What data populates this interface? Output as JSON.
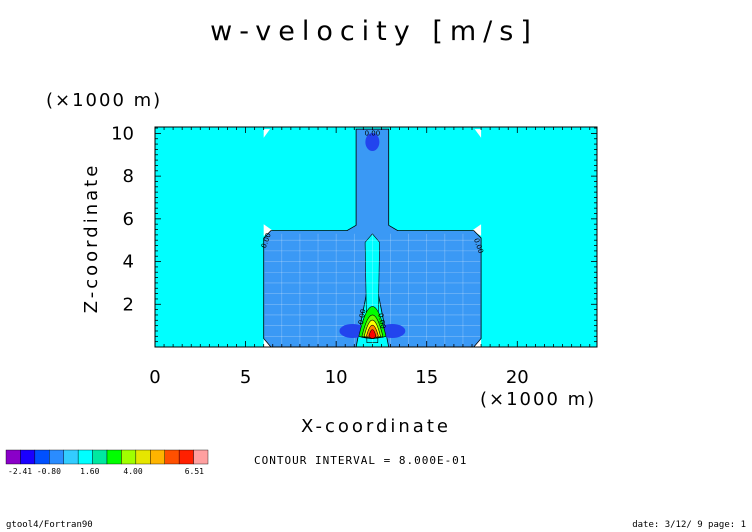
{
  "chart_data": {
    "type": "heatmap",
    "title": "w-velocity [m/s]",
    "xlabel": "X-coordinate",
    "ylabel": "Z-coordinate",
    "x_unit": "(×1000 m)",
    "y_unit": "(×1000 m)",
    "xlim": [
      0,
      24.4
    ],
    "ylim": [
      0,
      10.3
    ],
    "x_ticks": [
      0,
      5,
      10,
      15,
      20
    ],
    "y_ticks": [
      2,
      4,
      6,
      8,
      10
    ],
    "grid": false,
    "contour_interval_label": "CONTOUR INTERVAL = 8.000E-01",
    "colorbar": {
      "labels": [
        "-2.41",
        "-0.80",
        "1.60",
        "4.00",
        "6.51"
      ],
      "colors": [
        "#8a00c8",
        "#1a00ff",
        "#0050ff",
        "#2a8cff",
        "#33ccff",
        "#00ffff",
        "#00e8a0",
        "#00ff00",
        "#a0ff00",
        "#e6e600",
        "#ffb400",
        "#ff5000",
        "#ff2000",
        "#ffa0a0"
      ]
    },
    "field": {
      "background_color": "#00ffff",
      "region_color": "#3a99f5",
      "core_colors": [
        "#00ff00",
        "#66ff00",
        "#ffff00",
        "#ff8000",
        "#ff0000"
      ],
      "negative_color": "#2244ee",
      "contour_label": "0.00"
    }
  },
  "footer": {
    "left": "gtool4/Fortran90",
    "right": "date: 3/12/ 9 page: 1"
  }
}
